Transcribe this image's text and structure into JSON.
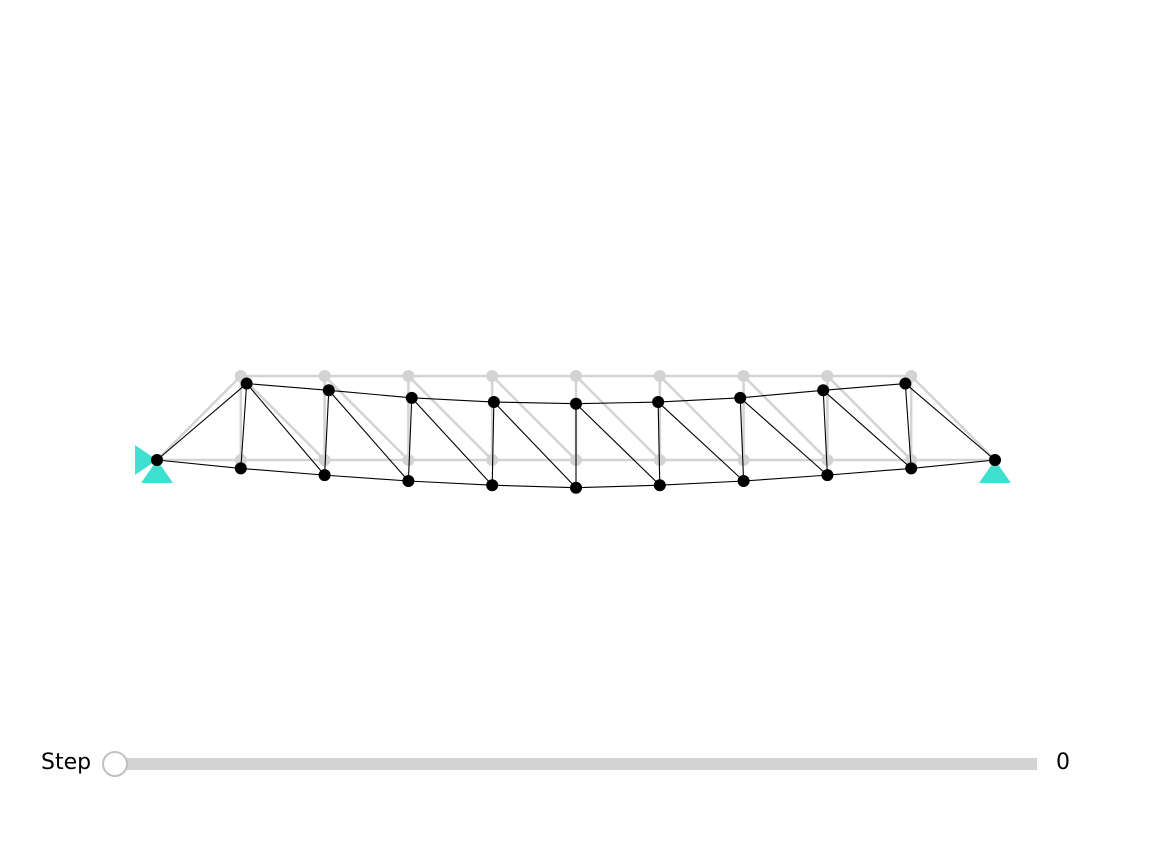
{
  "slider": {
    "label": "Step",
    "value": "0"
  },
  "colors": {
    "undeformed": "#d3d3d3",
    "deformed": "#000000",
    "support": "#40e0d0"
  },
  "truss": {
    "undeformed_nodes": [
      [
        0,
        0
      ],
      [
        1,
        0
      ],
      [
        2,
        0
      ],
      [
        3,
        0
      ],
      [
        4,
        0
      ],
      [
        5,
        0
      ],
      [
        6,
        0
      ],
      [
        7,
        0
      ],
      [
        8,
        0
      ],
      [
        9,
        0
      ],
      [
        10,
        0
      ],
      [
        1,
        1
      ],
      [
        2,
        1
      ],
      [
        3,
        1
      ],
      [
        4,
        1
      ],
      [
        5,
        1
      ],
      [
        6,
        1
      ],
      [
        7,
        1
      ],
      [
        8,
        1
      ],
      [
        9,
        1
      ]
    ],
    "deformed_nodes": [
      [
        0,
        0
      ],
      [
        1,
        -0.1
      ],
      [
        2,
        -0.18
      ],
      [
        3,
        -0.25
      ],
      [
        4,
        -0.3
      ],
      [
        5,
        -0.33
      ],
      [
        6,
        -0.3
      ],
      [
        7,
        -0.25
      ],
      [
        8,
        -0.18
      ],
      [
        9,
        -0.1
      ],
      [
        10,
        0
      ],
      [
        1.07,
        0.91
      ],
      [
        2.05,
        0.83
      ],
      [
        3.04,
        0.74
      ],
      [
        4.02,
        0.69
      ],
      [
        5,
        0.67
      ],
      [
        5.98,
        0.69
      ],
      [
        6.96,
        0.74
      ],
      [
        7.95,
        0.83
      ],
      [
        8.93,
        0.91
      ]
    ],
    "members": [
      [
        0,
        1
      ],
      [
        1,
        2
      ],
      [
        2,
        3
      ],
      [
        3,
        4
      ],
      [
        4,
        5
      ],
      [
        5,
        6
      ],
      [
        6,
        7
      ],
      [
        7,
        8
      ],
      [
        8,
        9
      ],
      [
        9,
        10
      ],
      [
        11,
        12
      ],
      [
        12,
        13
      ],
      [
        13,
        14
      ],
      [
        14,
        15
      ],
      [
        15,
        16
      ],
      [
        16,
        17
      ],
      [
        17,
        18
      ],
      [
        18,
        19
      ],
      [
        0,
        11
      ],
      [
        19,
        10
      ],
      [
        1,
        11
      ],
      [
        2,
        12
      ],
      [
        3,
        13
      ],
      [
        4,
        14
      ],
      [
        5,
        15
      ],
      [
        6,
        16
      ],
      [
        7,
        17
      ],
      [
        8,
        18
      ],
      [
        9,
        19
      ],
      [
        11,
        2
      ],
      [
        12,
        3
      ],
      [
        13,
        4
      ],
      [
        14,
        5
      ],
      [
        15,
        6
      ],
      [
        16,
        7
      ],
      [
        17,
        8
      ],
      [
        18,
        9
      ]
    ],
    "supports": [
      {
        "node": 0,
        "type": "pin"
      },
      {
        "node": 10,
        "type": "roller"
      }
    ]
  }
}
